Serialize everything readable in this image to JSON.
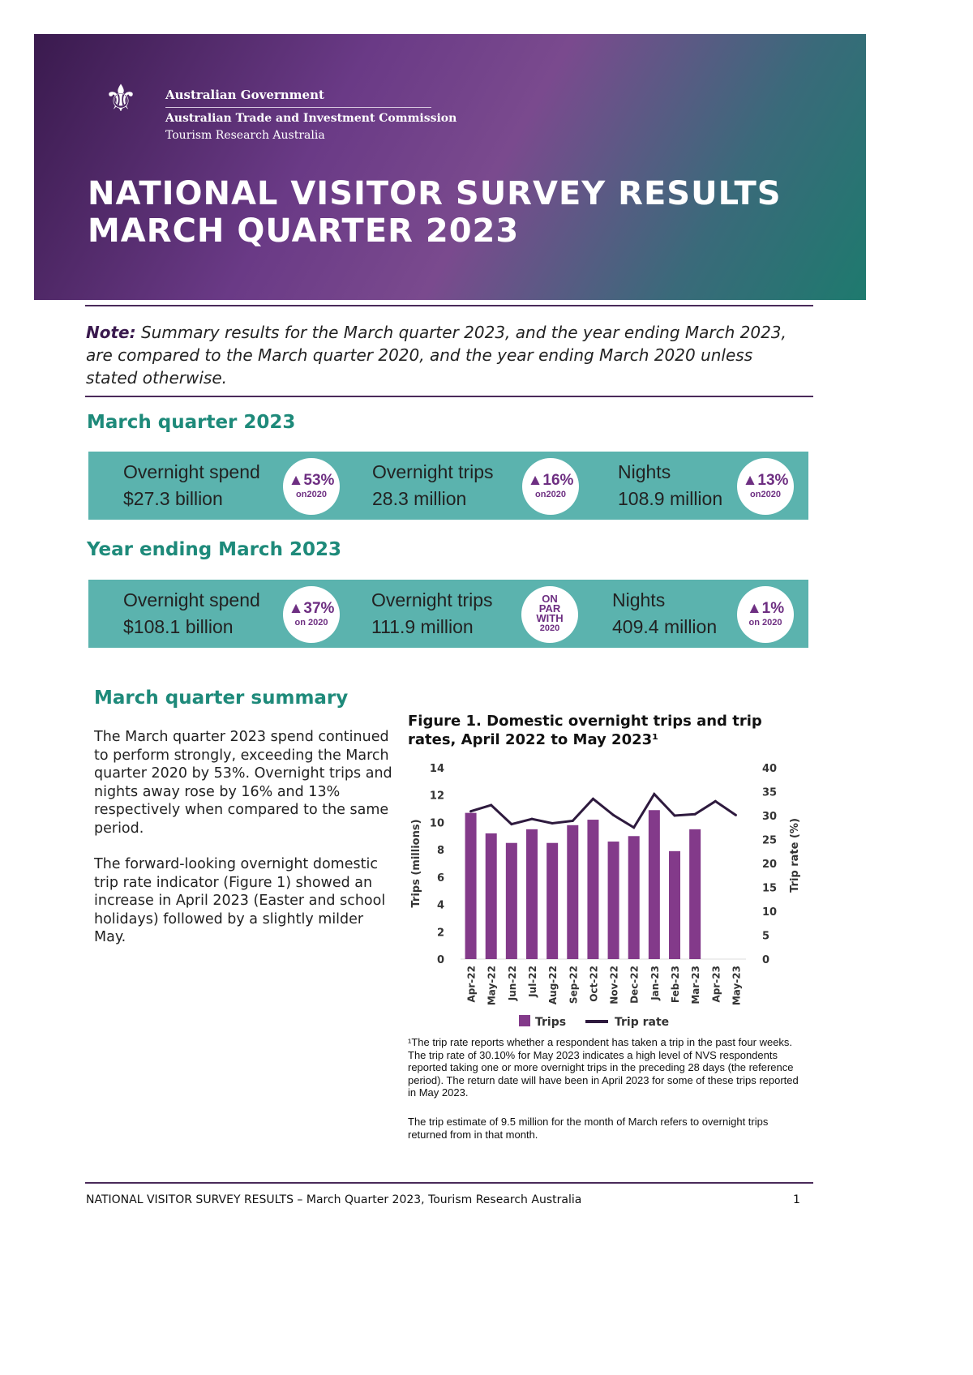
{
  "header": {
    "gov": "Australian Government",
    "agency": "Australian Trade and Investment Commission",
    "unit": "Tourism Research Australia",
    "title_line1": "NATIONAL VISITOR SURVEY RESULTS",
    "title_line2": "MARCH QUARTER 2023"
  },
  "note": {
    "label": "Note:",
    "text": " Summary results for the March quarter 2023, and the year ending March 2023, are compared to the March quarter 2020, and the year ending March 2020 unless stated otherwise."
  },
  "quarter": {
    "heading": "March quarter 2023",
    "stats": [
      {
        "label": "Overnight spend",
        "value": "$27.3 billion",
        "change": "▲53%",
        "sub": "on2020"
      },
      {
        "label": "Overnight trips",
        "value": "28.3 million",
        "change": "▲16%",
        "sub": "on2020"
      },
      {
        "label": "Nights",
        "value": "108.9 million",
        "change": "▲13%",
        "sub": "on2020"
      }
    ]
  },
  "year": {
    "heading": "Year ending March 2023",
    "stats": [
      {
        "label": "Overnight spend",
        "value": "$108.1 billion",
        "change": "▲37%",
        "sub": "on 2020"
      },
      {
        "label": "Overnight trips",
        "value": "111.9 million",
        "change": "ON PAR WITH",
        "sub": "2020"
      },
      {
        "label": "Nights",
        "value": "409.4 million",
        "change": "▲1%",
        "sub": "on 2020"
      }
    ]
  },
  "summary": {
    "heading": "March quarter summary",
    "p1": "The March quarter 2023 spend continued to perform strongly, exceeding the March quarter 2020 by 53%. Overnight trips and nights away rose by 16% and 13% respectively when compared to the same period.",
    "p2": "The forward-looking overnight domestic trip rate indicator (Figure 1) showed an increase in April 2023 (Easter and school holidays) followed by a slightly milder May."
  },
  "figure": {
    "title": "Figure 1. Domestic overnight trips and trip rates, April 2022 to May 2023¹",
    "footnote1": "¹The trip rate reports whether a respondent has taken a trip in the past four weeks. The trip rate of 30.10% for May 2023 indicates a high level of NVS respondents reported taking one or more overnight trips in the preceding 28 days (the reference period). The return date will have been in April 2023 for some of these trips reported in May 2023.",
    "footnote2": "The trip estimate of 9.5 million for the month of March refers to overnight trips returned from in that month."
  },
  "chart_data": {
    "type": "bar+line",
    "categories": [
      "Apr-22",
      "May-22",
      "Jun-22",
      "Jul-22",
      "Aug-22",
      "Sep-22",
      "Oct-22",
      "Nov-22",
      "Dec-22",
      "Jan-23",
      "Feb-23",
      "Mar-23",
      "Apr-23",
      "May-23"
    ],
    "series": [
      {
        "name": "Trips",
        "type": "bar",
        "axis": "left",
        "color": "#833a8a",
        "values": [
          10.7,
          9.2,
          8.5,
          9.5,
          8.5,
          9.8,
          10.2,
          8.6,
          9.0,
          10.9,
          7.9,
          9.5,
          null,
          null
        ]
      },
      {
        "name": "Trip rate",
        "type": "line",
        "axis": "right",
        "color": "#2e1a3e",
        "values": [
          30.9,
          32.2,
          28.2,
          29.3,
          28.4,
          28.9,
          33.5,
          30.1,
          27.5,
          34.5,
          30.0,
          30.3,
          33.0,
          30.1
        ]
      }
    ],
    "ylabel": "Trips (millions)",
    "y2label": "Trip rate (%)",
    "ylim": [
      0,
      14
    ],
    "y2lim": [
      0,
      40
    ],
    "yticks": [
      "0",
      "2",
      "4",
      "6",
      "8",
      "10",
      "12",
      "14"
    ],
    "y2ticks": [
      "0",
      "5",
      "10",
      "15",
      "20",
      "25",
      "30",
      "35",
      "40"
    ],
    "grid": false,
    "legend": "bottom"
  },
  "footer": {
    "text": "NATIONAL VISITOR SURVEY RESULTS – March Quarter 2023, Tourism Research Australia",
    "page": "1"
  }
}
